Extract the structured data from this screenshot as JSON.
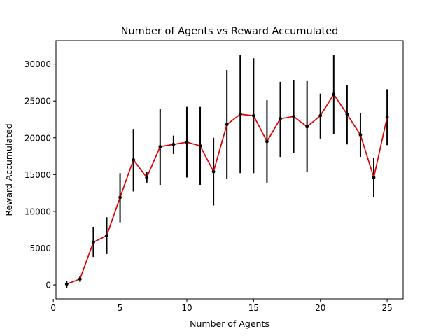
{
  "chart_data": {
    "type": "line",
    "title": "Number of Agents vs Reward Accumulated",
    "xlabel": "Number of Agents",
    "ylabel": "Reward Accumulated",
    "xlim": [
      0.2,
      26.2
    ],
    "ylim": [
      -1900,
      33200
    ],
    "xticks": [
      0,
      5,
      10,
      15,
      20,
      25
    ],
    "yticks": [
      0,
      5000,
      10000,
      15000,
      20000,
      25000,
      30000
    ],
    "grid": false,
    "line_color": "#e00000",
    "errorbar_color": "#000000",
    "marker_color": "#000000",
    "series": [
      {
        "x": [
          1,
          2,
          3,
          4,
          5,
          6,
          7,
          8,
          9,
          10,
          11,
          12,
          13,
          14,
          15,
          16,
          17,
          18,
          19,
          20,
          21,
          22,
          23,
          24,
          25
        ],
        "y": [
          100,
          800,
          5800,
          6700,
          11900,
          17000,
          14600,
          18800,
          19100,
          19400,
          18900,
          15400,
          21800,
          23200,
          23000,
          19500,
          22600,
          22900,
          21500,
          23000,
          25900,
          23200,
          20400,
          14600,
          22800
        ],
        "yerr_low": [
          -400,
          400,
          3800,
          4200,
          8500,
          12700,
          13900,
          13600,
          17800,
          14600,
          13600,
          10800,
          14400,
          15200,
          15200,
          13900,
          17400,
          17900,
          15400,
          19900,
          20500,
          19100,
          17400,
          11900,
          19000
        ],
        "yerr_high": [
          500,
          1200,
          7900,
          9200,
          15200,
          21200,
          15400,
          23900,
          20300,
          24200,
          24200,
          20000,
          29200,
          31200,
          30800,
          25100,
          27600,
          27800,
          27700,
          26000,
          31300,
          27200,
          23300,
          17300,
          26600
        ]
      }
    ]
  }
}
